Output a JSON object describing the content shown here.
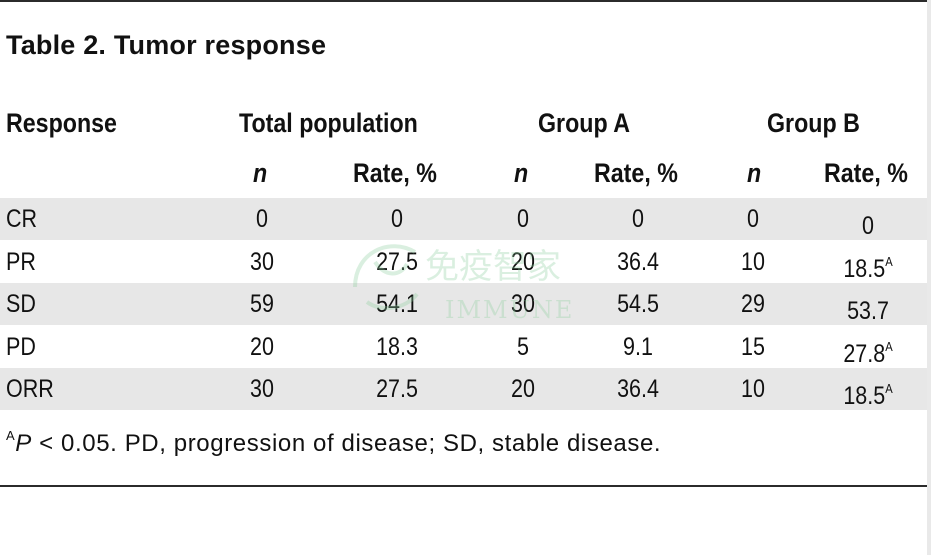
{
  "table": {
    "title": "Table 2. Tumor response",
    "headers": {
      "response": "Response",
      "total": "Total population",
      "group_a": "Group A",
      "group_b": "Group B"
    },
    "subheaders": {
      "n": "n",
      "rate": "Rate, %"
    },
    "rows": [
      {
        "label": "CR",
        "total_n": "0",
        "total_rate": "0",
        "a_n": "0",
        "a_rate": "0",
        "b_n": "0",
        "b_rate": "0",
        "b_rate_sup": ""
      },
      {
        "label": "PR",
        "total_n": "30",
        "total_rate": "27.5",
        "a_n": "20",
        "a_rate": "36.4",
        "b_n": "10",
        "b_rate": "18.5",
        "b_rate_sup": "A"
      },
      {
        "label": "SD",
        "total_n": "59",
        "total_rate": "54.1",
        "a_n": "30",
        "a_rate": "54.5",
        "b_n": "29",
        "b_rate": "53.7",
        "b_rate_sup": ""
      },
      {
        "label": "PD",
        "total_n": "20",
        "total_rate": "18.3",
        "a_n": "5",
        "a_rate": "9.1",
        "b_n": "15",
        "b_rate": "27.8",
        "b_rate_sup": "A"
      },
      {
        "label": "ORR",
        "total_n": "30",
        "total_rate": "27.5",
        "a_n": "20",
        "a_rate": "36.4",
        "b_n": "10",
        "b_rate": "18.5",
        "b_rate_sup": "A"
      }
    ],
    "footnote": {
      "sup": "A",
      "p": "P",
      "text": " < 0.05. PD, progression of disease; SD, stable disease."
    }
  },
  "watermark": {
    "text_cn": "免疫智家",
    "text_en": "IMMUNE",
    "color": "#8fcfa0"
  }
}
